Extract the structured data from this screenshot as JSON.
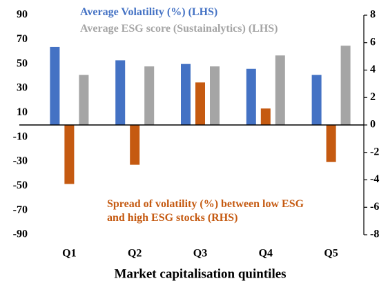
{
  "chart_data": {
    "type": "bar",
    "x_label": "Market capitalisation quintiles",
    "categories": [
      "Q1",
      "Q2",
      "Q3",
      "Q4",
      "Q5"
    ],
    "series": [
      {
        "name": "Average Volatility (%) (LHS)",
        "color": "#4472c4",
        "values": [
          64,
          53,
          50,
          46,
          41
        ]
      },
      {
        "name": "Spread of volatility (%) between low ESG and high ESG stocks (RHS)",
        "color": "#c55a11",
        "axis": "y2",
        "values": [
          -4.3,
          -2.9,
          3.1,
          1.2,
          -2.7
        ]
      },
      {
        "name": "Average ESG score (Sustainalytics) (LHS)",
        "color": "#a5a5a5",
        "values": [
          41,
          48,
          48,
          57,
          65
        ]
      }
    ],
    "ylim": [
      -90,
      90
    ],
    "yticks": [
      -90,
      -70,
      -50,
      -30,
      -10,
      10,
      30,
      50,
      70,
      90
    ],
    "y2lim": [
      -8,
      8
    ],
    "y2ticks": [
      -8,
      -6,
      -4,
      -2,
      0,
      2,
      4,
      6,
      8
    ]
  }
}
